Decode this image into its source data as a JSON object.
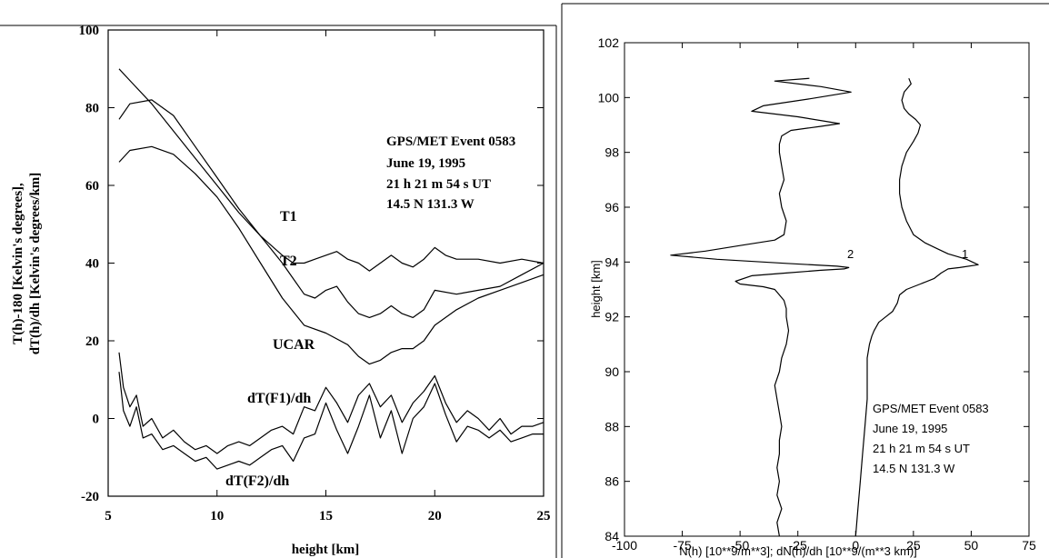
{
  "chart_data": [
    {
      "type": "line",
      "xlabel": "height [km]",
      "ylabel": "T(h)-180 [Kelvin's degrees], dT(h)/dh [Kelvin's degrees/km]",
      "ylabel_lines": [
        "T(h)-180 [Kelvin's degrees],",
        "dT(h)/dh [Kelvin's degrees/km]"
      ],
      "xlim": [
        5,
        25
      ],
      "ylim": [
        -20,
        100
      ],
      "xticks": [
        5,
        10,
        15,
        20,
        25
      ],
      "yticks": [
        -20,
        0,
        20,
        40,
        60,
        80,
        100
      ],
      "annotation": [
        "GPS/MET Event 0583",
        "June 19, 1995",
        "21 h 21 m 54 s UT",
        "14.5 N 131.3 W"
      ],
      "series": [
        {
          "name": "T1",
          "x": [
            5.5,
            6,
            7,
            8,
            9,
            10,
            11,
            12,
            13,
            13.5,
            14,
            14.5,
            15,
            15.5,
            16,
            16.5,
            17,
            17.5,
            18,
            18.5,
            19,
            19.5,
            20,
            20.5,
            21,
            22,
            23,
            24,
            25
          ],
          "y": [
            90,
            87,
            81,
            74,
            67,
            60,
            53,
            47,
            42,
            40,
            40,
            41,
            42,
            43,
            41,
            40,
            38,
            40,
            42,
            40,
            39,
            41,
            44,
            42,
            41,
            41,
            40,
            41,
            40
          ]
        },
        {
          "name": "T2",
          "x": [
            5.5,
            6,
            7,
            8,
            9,
            10,
            11,
            12,
            13,
            13.5,
            14,
            14.5,
            15,
            15.5,
            16,
            16.5,
            17,
            17.5,
            18,
            18.5,
            19,
            19.5,
            20,
            21,
            22,
            23,
            24,
            25
          ],
          "y": [
            77,
            81,
            82,
            78,
            70,
            62,
            54,
            47,
            40,
            36,
            32,
            31,
            33,
            34,
            30,
            27,
            26,
            27,
            29,
            27,
            26,
            28,
            33,
            32,
            33,
            34,
            37,
            40
          ]
        },
        {
          "name": "UCAR",
          "x": [
            5.5,
            6,
            7,
            8,
            9,
            10,
            11,
            12,
            13,
            14,
            15,
            16,
            16.5,
            17,
            17.5,
            18,
            18.5,
            19,
            19.5,
            20,
            21,
            22,
            23,
            24,
            25
          ],
          "y": [
            66,
            69,
            70,
            68,
            63,
            57,
            49,
            40,
            31,
            24,
            22,
            19,
            16,
            14,
            15,
            17,
            18,
            18,
            20,
            24,
            28,
            31,
            33,
            35,
            37
          ]
        },
        {
          "name": "dT(F1)/dh",
          "x": [
            5.5,
            5.7,
            6,
            6.3,
            6.6,
            7,
            7.5,
            8,
            8.5,
            9,
            9.5,
            10,
            10.5,
            11,
            11.5,
            12,
            12.5,
            13,
            13.5,
            14,
            14.5,
            15,
            15.5,
            16,
            16.5,
            17,
            17.5,
            18,
            18.5,
            19,
            19.5,
            20,
            20.5,
            21,
            21.5,
            22,
            22.5,
            23,
            23.5,
            24,
            24.5,
            25
          ],
          "y": [
            17,
            8,
            3,
            6,
            -2,
            0,
            -5,
            -3,
            -6,
            -8,
            -7,
            -9,
            -7,
            -6,
            -7,
            -5,
            -3,
            -2,
            -4,
            3,
            2,
            8,
            4,
            -1,
            6,
            9,
            3,
            6,
            -1,
            4,
            7,
            11,
            4,
            -1,
            2,
            0,
            -3,
            0,
            -4,
            -2,
            -2,
            -1
          ]
        },
        {
          "name": "dT(F2)/dh",
          "x": [
            5.5,
            5.7,
            6,
            6.3,
            6.6,
            7,
            7.5,
            8,
            8.5,
            9,
            9.5,
            10,
            10.5,
            11,
            11.5,
            12,
            12.5,
            13,
            13.5,
            14,
            14.5,
            15,
            15.5,
            16,
            16.5,
            17,
            17.5,
            18,
            18.5,
            19,
            19.5,
            20,
            20.5,
            21,
            21.5,
            22,
            22.5,
            23,
            23.5,
            24,
            24.5,
            25
          ],
          "y": [
            12,
            2,
            -2,
            3,
            -5,
            -4,
            -8,
            -7,
            -9,
            -11,
            -10,
            -13,
            -12,
            -11,
            -12,
            -10,
            -8,
            -7,
            -11,
            -5,
            -4,
            4,
            -3,
            -9,
            -2,
            6,
            -5,
            2,
            -9,
            0,
            3,
            9,
            1,
            -6,
            -2,
            -3,
            -5,
            -3,
            -6,
            -5,
            -4,
            -4
          ]
        }
      ],
      "curve_labels": {
        "T1": "T1",
        "T2": "T2",
        "UCAR": "UCAR",
        "F1": "dT(F1)/dh",
        "F2": "dT(F2)/dh"
      }
    },
    {
      "type": "line",
      "xlabel": "N(h) [10**9/m**3]; dN(h)/dh [10**9/(m**3 km)]",
      "ylabel": "height [km]",
      "xlim": [
        -100,
        75
      ],
      "ylim": [
        84,
        102
      ],
      "xticks": [
        -100,
        -75,
        -50,
        -25,
        0,
        25,
        50,
        75
      ],
      "yticks": [
        84,
        86,
        88,
        90,
        92,
        94,
        96,
        98,
        100,
        102
      ],
      "annotation": [
        "GPS/MET Event 0583",
        "June 19, 1995",
        "21 h 21 m 54 s UT",
        "14.5 N 131.3 W"
      ],
      "series": [
        {
          "name": "1",
          "x": [
            0,
            1,
            2,
            3,
            4,
            5,
            5,
            5,
            6,
            7,
            8,
            10,
            13,
            16,
            18,
            19,
            22,
            28,
            34,
            37,
            40,
            45,
            53,
            48,
            40,
            35,
            30,
            25,
            22,
            20,
            19,
            19,
            20,
            22,
            25,
            27,
            28,
            26,
            23,
            21,
            20,
            21,
            24,
            23
          ],
          "y": [
            84,
            85,
            86,
            87,
            88,
            89,
            90,
            90.5,
            91,
            91.3,
            91.5,
            91.8,
            92,
            92.2,
            92.5,
            92.8,
            93,
            93.2,
            93.4,
            93.6,
            93.75,
            93.8,
            93.9,
            94.1,
            94.3,
            94.5,
            94.7,
            95,
            95.5,
            96,
            96.5,
            97,
            97.5,
            98,
            98.4,
            98.7,
            99,
            99.2,
            99.4,
            99.6,
            99.9,
            100.2,
            100.5,
            100.7
          ]
        },
        {
          "name": "2",
          "x": [
            -33,
            -34,
            -32,
            -34,
            -33,
            -34,
            -33,
            -33,
            -32,
            -33,
            -34,
            -35,
            -33,
            -32,
            -30,
            -29,
            -30,
            -30,
            -31,
            -33,
            -35,
            -40,
            -50,
            -52,
            -45,
            -30,
            -15,
            -5,
            -3,
            -8,
            -30,
            -60,
            -80,
            -65,
            -50,
            -35,
            -31,
            -30,
            -32,
            -33,
            -31,
            -32,
            -33,
            -33,
            -32,
            -28,
            -15,
            -7,
            -25,
            -45,
            -40,
            -20,
            -2,
            -15,
            -35,
            -20
          ],
          "y": [
            84,
            84.5,
            85,
            85.5,
            86,
            86.5,
            87,
            87.5,
            88,
            88.5,
            89,
            89.5,
            90,
            90.5,
            91,
            91.5,
            92,
            92.3,
            92.6,
            92.8,
            93,
            93.1,
            93.2,
            93.3,
            93.5,
            93.6,
            93.7,
            93.75,
            93.8,
            93.85,
            93.95,
            94.1,
            94.25,
            94.4,
            94.6,
            94.8,
            95,
            95.5,
            96,
            96.5,
            97,
            97.5,
            98,
            98.3,
            98.6,
            98.8,
            98.95,
            99.05,
            99.3,
            99.5,
            99.7,
            99.95,
            100.2,
            100.4,
            100.6,
            100.7
          ]
        }
      ],
      "curve_labels": {
        "c1": "1",
        "c2": "2"
      }
    }
  ]
}
